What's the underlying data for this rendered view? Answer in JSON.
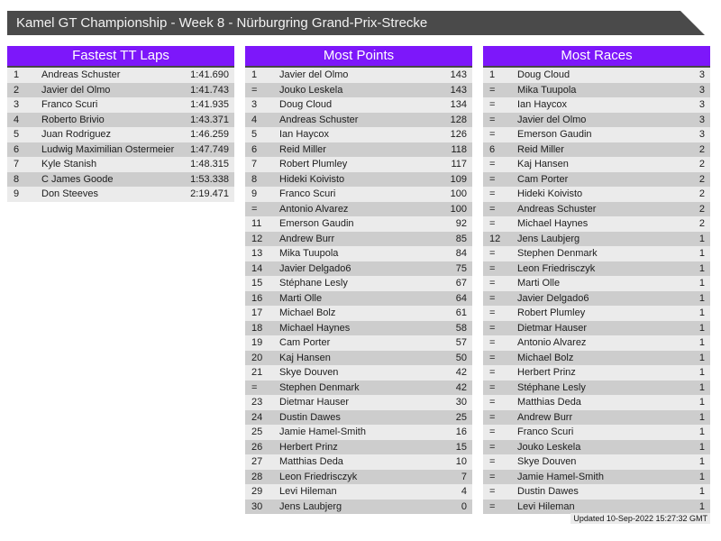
{
  "title_bar": {
    "text": "Kamel GT Championship - Week 8 - Nürburgring Grand-Prix-Strecke"
  },
  "colors": {
    "accent_purple": "#7d17fa",
    "titlebar_gray": "#4a4a4a",
    "row_odd": "#ebebeb",
    "row_even": "#cdcdcd"
  },
  "tables": [
    {
      "title": "Fastest TT Laps",
      "rows": [
        [
          "1",
          "Andreas Schuster",
          "1:41.690"
        ],
        [
          "2",
          "Javier del Olmo",
          "1:41.743"
        ],
        [
          "3",
          "Franco Scuri",
          "1:41.935"
        ],
        [
          "4",
          "Roberto Brivio",
          "1:43.371"
        ],
        [
          "5",
          "Juan Rodriguez",
          "1:46.259"
        ],
        [
          "6",
          "Ludwig Maximilian Ostermeier",
          "1:47.749"
        ],
        [
          "7",
          "Kyle Stanish",
          "1:48.315"
        ],
        [
          "8",
          "C James Goode",
          "1:53.338"
        ],
        [
          "9",
          "Don Steeves",
          "2:19.471"
        ]
      ]
    },
    {
      "title": "Most Points",
      "rows": [
        [
          "1",
          "Javier del Olmo",
          "143"
        ],
        [
          "=",
          "Jouko Leskela",
          "143"
        ],
        [
          "3",
          "Doug Cloud",
          "134"
        ],
        [
          "4",
          "Andreas Schuster",
          "128"
        ],
        [
          "5",
          "Ian Haycox",
          "126"
        ],
        [
          "6",
          "Reid Miller",
          "118"
        ],
        [
          "7",
          "Robert Plumley",
          "117"
        ],
        [
          "8",
          "Hideki Koivisto",
          "109"
        ],
        [
          "9",
          "Franco Scuri",
          "100"
        ],
        [
          "=",
          "Antonio Alvarez",
          "100"
        ],
        [
          "11",
          "Emerson Gaudin",
          "92"
        ],
        [
          "12",
          "Andrew Burr",
          "85"
        ],
        [
          "13",
          "Mika Tuupola",
          "84"
        ],
        [
          "14",
          "Javier Delgado6",
          "75"
        ],
        [
          "15",
          "Stéphane Lesly",
          "67"
        ],
        [
          "16",
          "Marti Olle",
          "64"
        ],
        [
          "17",
          "Michael Bolz",
          "61"
        ],
        [
          "18",
          "Michael Haynes",
          "58"
        ],
        [
          "19",
          "Cam Porter",
          "57"
        ],
        [
          "20",
          "Kaj Hansen",
          "50"
        ],
        [
          "21",
          "Skye Douven",
          "42"
        ],
        [
          "=",
          "Stephen Denmark",
          "42"
        ],
        [
          "23",
          "Dietmar Hauser",
          "30"
        ],
        [
          "24",
          "Dustin Dawes",
          "25"
        ],
        [
          "25",
          "Jamie Hamel-Smith",
          "16"
        ],
        [
          "26",
          "Herbert Prinz",
          "15"
        ],
        [
          "27",
          "Matthias Deda",
          "10"
        ],
        [
          "28",
          "Leon Friedrisczyk",
          "7"
        ],
        [
          "29",
          "Levi Hileman",
          "4"
        ],
        [
          "30",
          "Jens Laubjerg",
          "0"
        ]
      ]
    },
    {
      "title": "Most Races",
      "rows": [
        [
          "1",
          "Doug Cloud",
          "3"
        ],
        [
          "=",
          "Mika Tuupola",
          "3"
        ],
        [
          "=",
          "Ian Haycox",
          "3"
        ],
        [
          "=",
          "Javier del Olmo",
          "3"
        ],
        [
          "=",
          "Emerson Gaudin",
          "3"
        ],
        [
          "6",
          "Reid Miller",
          "2"
        ],
        [
          "=",
          "Kaj Hansen",
          "2"
        ],
        [
          "=",
          "Cam Porter",
          "2"
        ],
        [
          "=",
          "Hideki Koivisto",
          "2"
        ],
        [
          "=",
          "Andreas Schuster",
          "2"
        ],
        [
          "=",
          "Michael Haynes",
          "2"
        ],
        [
          "12",
          "Jens Laubjerg",
          "1"
        ],
        [
          "=",
          "Stephen Denmark",
          "1"
        ],
        [
          "=",
          "Leon Friedrisczyk",
          "1"
        ],
        [
          "=",
          "Marti Olle",
          "1"
        ],
        [
          "=",
          "Javier Delgado6",
          "1"
        ],
        [
          "=",
          "Robert Plumley",
          "1"
        ],
        [
          "=",
          "Dietmar Hauser",
          "1"
        ],
        [
          "=",
          "Antonio Alvarez",
          "1"
        ],
        [
          "=",
          "Michael Bolz",
          "1"
        ],
        [
          "=",
          "Herbert Prinz",
          "1"
        ],
        [
          "=",
          "Stéphane Lesly",
          "1"
        ],
        [
          "=",
          "Matthias Deda",
          "1"
        ],
        [
          "=",
          "Andrew Burr",
          "1"
        ],
        [
          "=",
          "Franco Scuri",
          "1"
        ],
        [
          "=",
          "Jouko Leskela",
          "1"
        ],
        [
          "=",
          "Skye Douven",
          "1"
        ],
        [
          "=",
          "Jamie Hamel-Smith",
          "1"
        ],
        [
          "=",
          "Dustin Dawes",
          "1"
        ],
        [
          "=",
          "Levi Hileman",
          "1"
        ]
      ]
    }
  ],
  "footer": {
    "updated_text": "Updated 10-Sep-2022 15:27:32 GMT"
  }
}
